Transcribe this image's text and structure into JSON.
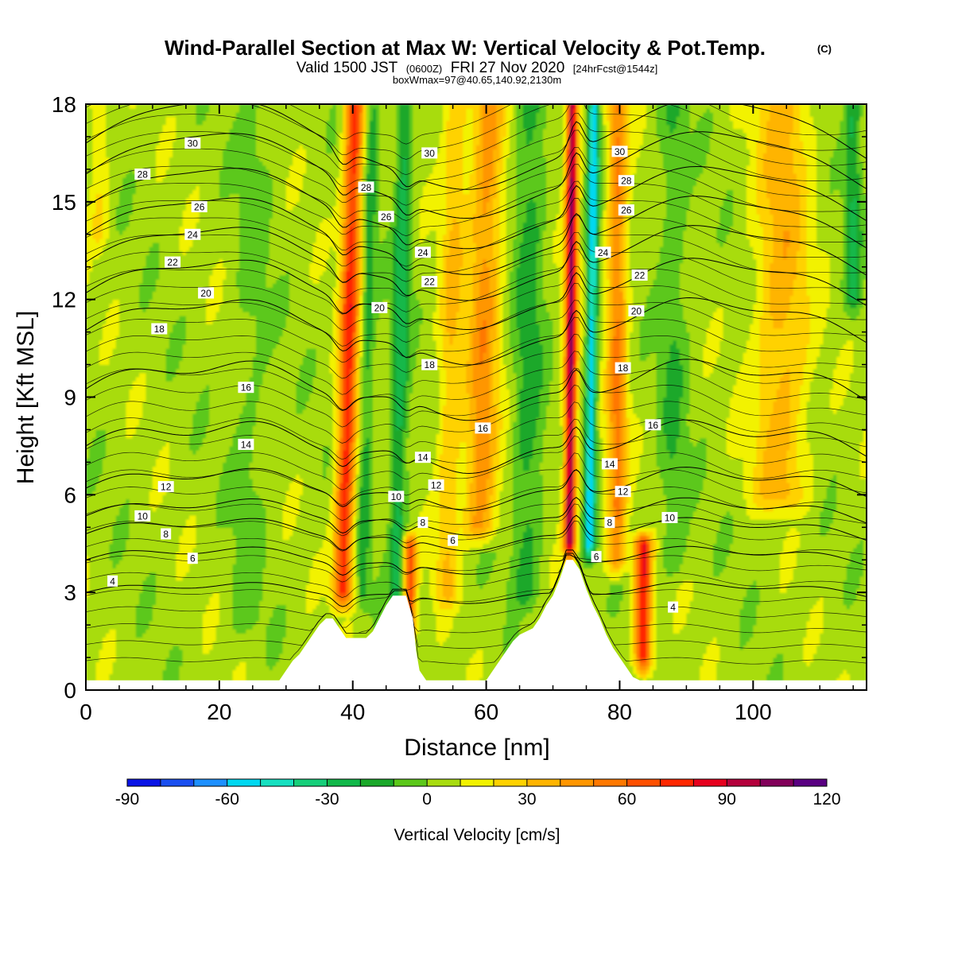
{
  "title": {
    "main": "Wind-Parallel Section at Max W: Vertical Velocity & Pot.Temp.",
    "copyright": "(C)",
    "valid_prefix": "Valid 1500 JST",
    "valid_utc": "(0600Z)",
    "valid_date": "FRI 27 Nov 2020",
    "forecast": "[24hrFcst@1544z]",
    "box_info": "boxWmax=97@40.65,140.92,2130m"
  },
  "chart_data": {
    "type": "heatmap",
    "xlabel": "Distance [nm]",
    "ylabel": "Height [Kft MSL]",
    "xlim": [
      0,
      117
    ],
    "ylim": [
      0,
      18
    ],
    "x_ticks": [
      0,
      20,
      40,
      60,
      80,
      100
    ],
    "y_ticks": [
      0,
      3,
      6,
      9,
      12,
      15,
      18
    ],
    "colorbar": {
      "title": "Vertical Velocity [cm/s]",
      "levels": [
        -90,
        -80,
        -70,
        -60,
        -50,
        -40,
        -30,
        -20,
        -10,
        0,
        10,
        20,
        30,
        40,
        50,
        60,
        70,
        80,
        90,
        100,
        110,
        120
      ],
      "tick_labels": [
        "-90",
        "-60",
        "-30",
        "0",
        "30",
        "60",
        "90",
        "120"
      ],
      "tick_values": [
        -90,
        -60,
        -30,
        0,
        30,
        60,
        90,
        120
      ],
      "colors": [
        "#0a14e6",
        "#1a4ff0",
        "#1e90ff",
        "#00d8f0",
        "#17e0c0",
        "#16cf7a",
        "#12b84a",
        "#1aa82a",
        "#5cc81a",
        "#a8dc10",
        "#f2f200",
        "#ffd200",
        "#ffb400",
        "#ff9600",
        "#ff7800",
        "#ff5000",
        "#ff2800",
        "#e6001e",
        "#b4003c",
        "#82005a",
        "#5a0082"
      ]
    },
    "terrain_kft": [
      {
        "x": 0,
        "h": 0.3
      },
      {
        "x": 29,
        "h": 0.3
      },
      {
        "x": 30,
        "h": 0.6
      },
      {
        "x": 31,
        "h": 0.9
      },
      {
        "x": 32,
        "h": 1.1
      },
      {
        "x": 33,
        "h": 1.4
      },
      {
        "x": 34,
        "h": 1.7
      },
      {
        "x": 35,
        "h": 2.0
      },
      {
        "x": 36,
        "h": 2.2
      },
      {
        "x": 37,
        "h": 2.2
      },
      {
        "x": 38,
        "h": 1.9
      },
      {
        "x": 39,
        "h": 1.6
      },
      {
        "x": 42,
        "h": 1.6
      },
      {
        "x": 43,
        "h": 1.8
      },
      {
        "x": 44,
        "h": 2.2
      },
      {
        "x": 45,
        "h": 2.6
      },
      {
        "x": 46,
        "h": 2.9
      },
      {
        "x": 48,
        "h": 2.9
      },
      {
        "x": 49,
        "h": 2.2
      },
      {
        "x": 49.5,
        "h": 1.2
      },
      {
        "x": 50,
        "h": 0.6
      },
      {
        "x": 51,
        "h": 0.3
      },
      {
        "x": 60,
        "h": 0.3
      },
      {
        "x": 61,
        "h": 0.6
      },
      {
        "x": 62,
        "h": 0.9
      },
      {
        "x": 63,
        "h": 1.2
      },
      {
        "x": 64,
        "h": 1.5
      },
      {
        "x": 65,
        "h": 1.7
      },
      {
        "x": 67,
        "h": 1.9
      },
      {
        "x": 68,
        "h": 2.2
      },
      {
        "x": 69,
        "h": 2.6
      },
      {
        "x": 70,
        "h": 2.9
      },
      {
        "x": 71,
        "h": 3.4
      },
      {
        "x": 72,
        "h": 4.0
      },
      {
        "x": 73,
        "h": 4.0
      },
      {
        "x": 74,
        "h": 3.7
      },
      {
        "x": 75,
        "h": 3.1
      },
      {
        "x": 76,
        "h": 2.6
      },
      {
        "x": 77,
        "h": 2.2
      },
      {
        "x": 78,
        "h": 1.7
      },
      {
        "x": 79,
        "h": 1.3
      },
      {
        "x": 80,
        "h": 1.0
      },
      {
        "x": 81,
        "h": 0.7
      },
      {
        "x": 82,
        "h": 0.4
      },
      {
        "x": 83,
        "h": 0.3
      },
      {
        "x": 117,
        "h": 0.3
      }
    ],
    "w_features": [
      {
        "x": 38.5,
        "h0": 3.0,
        "h1": 18,
        "sx": 1.4,
        "slope": 0.12,
        "w": 70
      },
      {
        "x": 46.5,
        "h0": 2.0,
        "h1": 18,
        "sx": 1.2,
        "slope": 0.08,
        "w": -30
      },
      {
        "x": 48.5,
        "h0": 2.0,
        "h1": 4.5,
        "sx": 1.0,
        "slope": 0,
        "w": 60
      },
      {
        "x": 41.5,
        "h0": 3.0,
        "h1": 18,
        "sx": 1.0,
        "slope": 0.1,
        "w": -20
      },
      {
        "x": 59,
        "h0": 5.0,
        "h1": 18,
        "sx": 2.4,
        "slope": 0.1,
        "w": 40
      },
      {
        "x": 54,
        "h0": 3.0,
        "h1": 18,
        "sx": 1.8,
        "slope": 0.1,
        "w": 25
      },
      {
        "x": 66,
        "h0": 3.0,
        "h1": 18,
        "sx": 2.2,
        "slope": 0.05,
        "w": -20
      },
      {
        "x": 72.5,
        "h0": 4.5,
        "h1": 18,
        "sx": 0.9,
        "slope": 0.03,
        "w": 95
      },
      {
        "x": 75.5,
        "h0": 4.5,
        "h1": 18,
        "sx": 0.8,
        "slope": 0.05,
        "w": -60
      },
      {
        "x": 79.5,
        "h0": 4.0,
        "h1": 18,
        "sx": 1.5,
        "slope": 0.02,
        "w": 45
      },
      {
        "x": 83.5,
        "h0": 1.0,
        "h1": 4.5,
        "sx": 1.3,
        "slope": 0,
        "w": 75
      },
      {
        "x": 88,
        "h0": 4.0,
        "h1": 18,
        "sx": 2.0,
        "slope": 0,
        "w": -15
      },
      {
        "x": 104,
        "h0": 6.0,
        "h1": 18,
        "sx": 4.0,
        "slope": 0.05,
        "w": 30
      },
      {
        "x": 115,
        "h0": 12.0,
        "h1": 18,
        "sx": 1.2,
        "slope": 0,
        "w": -25
      },
      {
        "x": 2,
        "h0": 14.0,
        "h1": 18,
        "sx": 1.5,
        "slope": 0,
        "w": 15
      },
      {
        "x": 24,
        "h0": 2.0,
        "h1": 18,
        "sx": 2.5,
        "slope": 0.1,
        "w": -8
      }
    ],
    "theta_contours": [
      {
        "label": "4",
        "base_kft": 3.0,
        "lx": 4,
        "ly": 3.35
      },
      {
        "label": "6",
        "base_kft": 4.0,
        "lx": 16,
        "ly": 4.05
      },
      {
        "label": "8",
        "base_kft": 4.8,
        "lx": 12,
        "ly": 4.8
      },
      {
        "label": "10",
        "base_kft": 5.35,
        "lx": 8.5,
        "ly": 5.35
      },
      {
        "label": "12",
        "base_kft": 6.2,
        "lx": 12,
        "ly": 6.25
      },
      {
        "label": "14",
        "base_kft": 7.5,
        "lx": 24,
        "ly": 7.55
      },
      {
        "label": "16",
        "base_kft": 9.25,
        "lx": 24,
        "ly": 9.3
      },
      {
        "label": "18",
        "base_kft": 11.05,
        "lx": 11,
        "ly": 11.1
      },
      {
        "label": "20",
        "base_kft": 12.2,
        "lx": 18,
        "ly": 12.2
      },
      {
        "label": "22",
        "base_kft": 13.15,
        "lx": 13,
        "ly": 13.15
      },
      {
        "label": "24",
        "base_kft": 14.0,
        "lx": 16,
        "ly": 14.0
      },
      {
        "label": "26",
        "base_kft": 14.85,
        "lx": 17,
        "ly": 14.85
      },
      {
        "label": "28",
        "base_kft": 15.85,
        "lx": 8.5,
        "ly": 15.85
      },
      {
        "label": "30",
        "base_kft": 16.8,
        "lx": 16,
        "ly": 16.8
      }
    ],
    "inline_labels": [
      {
        "label": "30",
        "x": 51.5,
        "y": 16.5
      },
      {
        "label": "28",
        "x": 42,
        "y": 15.45
      },
      {
        "label": "26",
        "x": 45,
        "y": 14.55
      },
      {
        "label": "24",
        "x": 50.5,
        "y": 13.45
      },
      {
        "label": "22",
        "x": 51.5,
        "y": 12.55
      },
      {
        "label": "20",
        "x": 44,
        "y": 11.75
      },
      {
        "label": "18",
        "x": 51.5,
        "y": 10.0
      },
      {
        "label": "16",
        "x": 59.5,
        "y": 8.05
      },
      {
        "label": "14",
        "x": 50.5,
        "y": 7.15
      },
      {
        "label": "12",
        "x": 52.5,
        "y": 6.3
      },
      {
        "label": "10",
        "x": 46.5,
        "y": 5.95
      },
      {
        "label": "8",
        "x": 50.5,
        "y": 5.15
      },
      {
        "label": "6",
        "x": 55,
        "y": 4.6
      },
      {
        "label": "30",
        "x": 80,
        "y": 16.55
      },
      {
        "label": "28",
        "x": 81,
        "y": 15.65
      },
      {
        "label": "26",
        "x": 81,
        "y": 14.75
      },
      {
        "label": "24",
        "x": 77.5,
        "y": 13.45
      },
      {
        "label": "22",
        "x": 83,
        "y": 12.75
      },
      {
        "label": "20",
        "x": 82.5,
        "y": 11.65
      },
      {
        "label": "18",
        "x": 80.5,
        "y": 9.9
      },
      {
        "label": "16",
        "x": 85,
        "y": 8.15
      },
      {
        "label": "14",
        "x": 78.5,
        "y": 6.95
      },
      {
        "label": "12",
        "x": 80.5,
        "y": 6.1
      },
      {
        "label": "10",
        "x": 87.5,
        "y": 5.3
      },
      {
        "label": "8",
        "x": 78.5,
        "y": 5.15
      },
      {
        "label": "6",
        "x": 76.5,
        "y": 4.1
      },
      {
        "label": "4",
        "x": 88,
        "y": 2.55
      }
    ]
  }
}
